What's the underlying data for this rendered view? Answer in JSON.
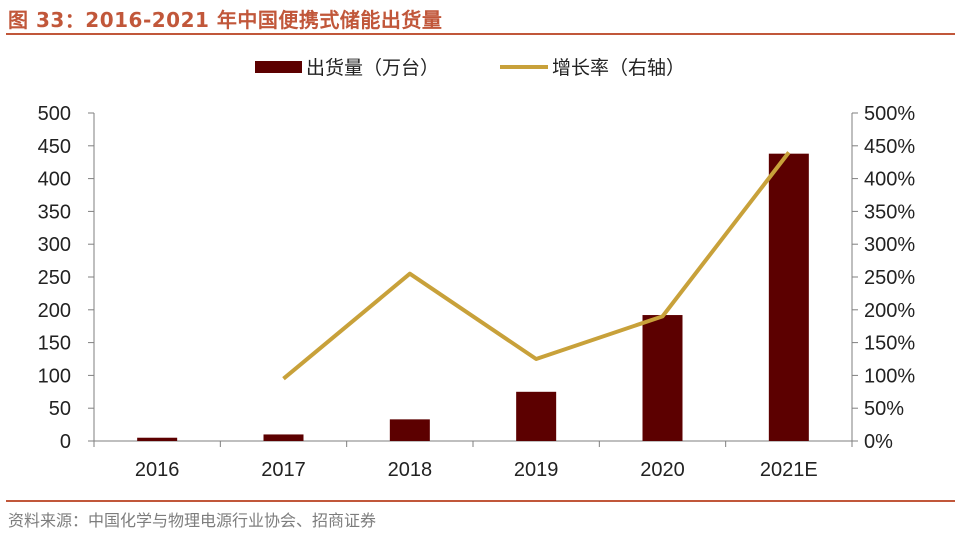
{
  "header": {
    "title": "图 33：2016-2021 年中国便携式储能出货量"
  },
  "footer": {
    "source": "资料来源：中国化学与物理电源行业协会、招商证券"
  },
  "colors": {
    "accent": "#c1573a",
    "bar": "#5c0000",
    "line": "#c8a13a",
    "axis": "#7f7f7f"
  },
  "chart_data": {
    "type": "bar+line",
    "categories": [
      "2016",
      "2017",
      "2018",
      "2019",
      "2020",
      "2021E"
    ],
    "series": [
      {
        "name": "出货量（万台）",
        "kind": "bar",
        "axis": "left",
        "values": [
          5,
          10,
          33,
          75,
          192,
          438
        ]
      },
      {
        "name": "增长率（右轴）",
        "kind": "line",
        "axis": "right",
        "values": [
          null,
          95,
          255,
          125,
          190,
          440
        ]
      }
    ],
    "left_axis": {
      "min": 0,
      "max": 500,
      "step": 50,
      "tick_labels": [
        "0",
        "50",
        "100",
        "150",
        "200",
        "250",
        "300",
        "350",
        "400",
        "450",
        "500"
      ]
    },
    "right_axis": {
      "min": 0,
      "max": 500,
      "step": 50,
      "tick_labels": [
        "0%",
        "50%",
        "100%",
        "150%",
        "200%",
        "250%",
        "300%",
        "350%",
        "400%",
        "450%",
        "500%"
      ]
    },
    "legend_position": "top-center",
    "grid": false
  }
}
